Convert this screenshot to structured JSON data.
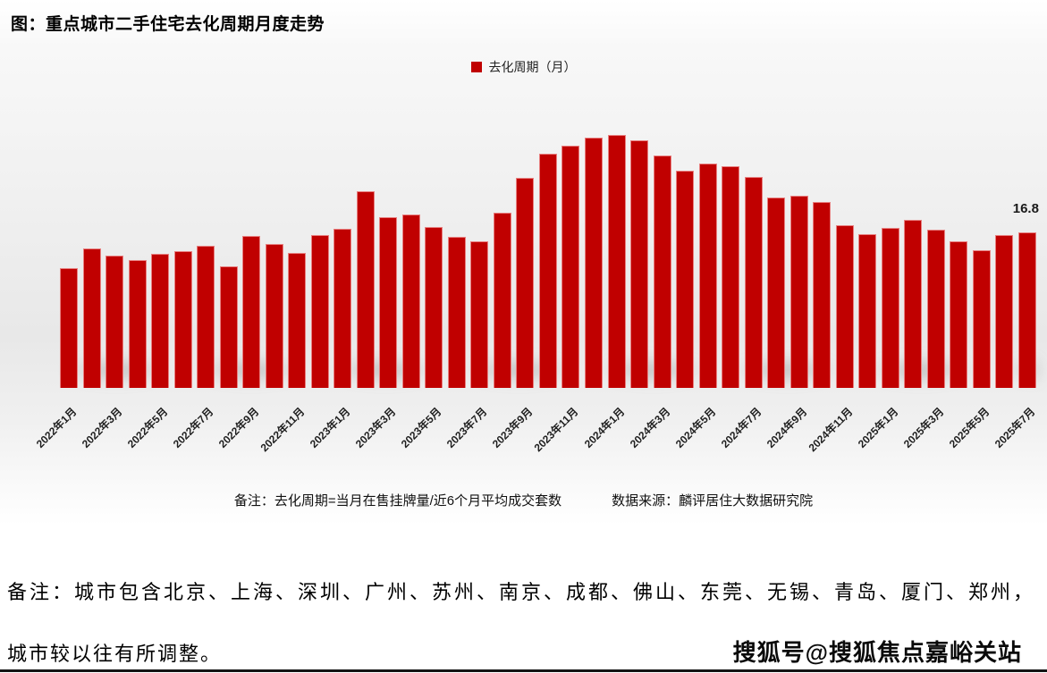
{
  "figure": {
    "note_left": "备注：去化周期=当月在售挂牌量/近6个月平均成交套数",
    "note_right": "数据来源：麟评居住大数据研究院"
  },
  "chart_data": {
    "type": "bar",
    "title": "图：重点城市二手住宅去化周期月度走势",
    "legend_label": "去化周期（月）",
    "legend_position": "top-center",
    "bar_color": "#c00000",
    "grid": false,
    "ylim": [
      0,
      30
    ],
    "last_point_label": "16.8",
    "categories": [
      "2022年1月",
      "2022年2月",
      "2022年3月",
      "2022年4月",
      "2022年5月",
      "2022年6月",
      "2022年7月",
      "2022年8月",
      "2022年9月",
      "2022年10月",
      "2022年11月",
      "2022年12月",
      "2023年1月",
      "2023年2月",
      "2023年3月",
      "2023年4月",
      "2023年5月",
      "2023年6月",
      "2023年7月",
      "2023年8月",
      "2023年9月",
      "2023年10月",
      "2023年11月",
      "2023年12月",
      "2024年1月",
      "2024年2月",
      "2024年3月",
      "2024年4月",
      "2024年5月",
      "2024年6月",
      "2024年7月",
      "2024年8月",
      "2024年9月",
      "2024年10月",
      "2024年11月",
      "2024年12月",
      "2025年1月",
      "2025年2月",
      "2025年3月",
      "2025年4月",
      "2025年5月",
      "2025年6月",
      "2025年7月"
    ],
    "values": [
      12.9,
      15.1,
      14.3,
      13.8,
      14.5,
      14.8,
      15.3,
      13.1,
      16.4,
      15.5,
      14.6,
      16.5,
      17.2,
      21.2,
      18.4,
      18.7,
      17.4,
      16.3,
      15.8,
      18.9,
      22.7,
      25.3,
      26.2,
      27.0,
      27.3,
      26.7,
      25.1,
      23.5,
      24.2,
      23.9,
      22.8,
      20.6,
      20.8,
      20.1,
      17.6,
      16.6,
      17.3,
      18.1,
      17.1,
      15.8,
      14.9,
      16.5,
      16.8
    ],
    "x_tick_step": 2,
    "xlabel": "",
    "ylabel": ""
  },
  "footer": {
    "note_line1": "备注：城市包含北京、上海、深圳、广州、苏州、南京、成都、佛山、东莞、无锡、青岛、厦门、郑州，",
    "note_line2": "城市较以往有所调整。",
    "watermark": "搜狐号@搜狐焦点嘉峪关站"
  }
}
